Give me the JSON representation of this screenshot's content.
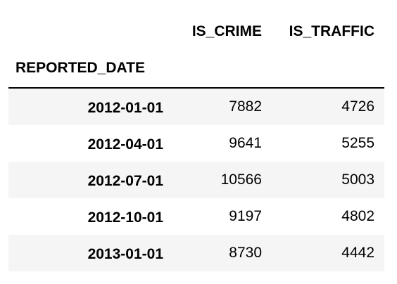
{
  "table": {
    "columns": [
      "IS_CRIME",
      "IS_TRAFFIC"
    ],
    "index_name": "REPORTED_DATE",
    "rows": [
      {
        "index": "2012-01-01",
        "is_crime": "7882",
        "is_traffic": "4726"
      },
      {
        "index": "2012-04-01",
        "is_crime": "9641",
        "is_traffic": "5255"
      },
      {
        "index": "2012-07-01",
        "is_crime": "10566",
        "is_traffic": "5003"
      },
      {
        "index": "2012-10-01",
        "is_crime": "9197",
        "is_traffic": "4802"
      },
      {
        "index": "2013-01-01",
        "is_crime": "8730",
        "is_traffic": "4442"
      }
    ]
  }
}
